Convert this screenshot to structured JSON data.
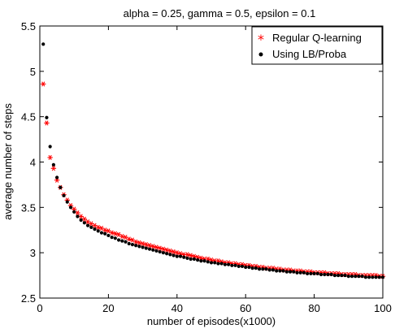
{
  "chart_data": {
    "type": "scatter",
    "title": "alpha = 0.25, gamma = 0.5, epsilon = 0.1",
    "xlabel": "number of episodes(x1000)",
    "ylabel": "average number of steps",
    "xlim": [
      0,
      100
    ],
    "ylim": [
      2.5,
      5.5
    ],
    "x_ticks": [
      0,
      20,
      40,
      60,
      80,
      100
    ],
    "y_ticks": [
      2.5,
      3,
      3.5,
      4,
      4.5,
      5,
      5.5
    ],
    "x_tick_labels": [
      "0",
      "20",
      "40",
      "60",
      "80",
      "100"
    ],
    "y_tick_labels": [
      "2.5",
      "3",
      "3.5",
      "4",
      "4.5",
      "5",
      "5.5"
    ],
    "grid": false,
    "legend_position": "top-right",
    "series": [
      {
        "name": "Regular Q-learning",
        "marker": "asterisk",
        "color": "#ff0000",
        "x": [
          1,
          2,
          3,
          4,
          5,
          6,
          7,
          8,
          9,
          10,
          11,
          12,
          13,
          14,
          15,
          16,
          17,
          18,
          19,
          20,
          21,
          22,
          23,
          24,
          25,
          26,
          27,
          28,
          29,
          30,
          31,
          32,
          33,
          34,
          35,
          36,
          37,
          38,
          39,
          40,
          41,
          42,
          43,
          44,
          45,
          46,
          47,
          48,
          49,
          50,
          51,
          52,
          53,
          54,
          55,
          56,
          57,
          58,
          59,
          60,
          61,
          62,
          63,
          64,
          65,
          66,
          67,
          68,
          69,
          70,
          71,
          72,
          73,
          74,
          75,
          76,
          77,
          78,
          79,
          80,
          81,
          82,
          83,
          84,
          85,
          86,
          87,
          88,
          89,
          90,
          91,
          92,
          93,
          94,
          95,
          96,
          97,
          98,
          99,
          100
        ],
        "y": [
          4.86,
          4.43,
          4.05,
          3.93,
          3.8,
          3.72,
          3.64,
          3.58,
          3.52,
          3.48,
          3.44,
          3.4,
          3.37,
          3.34,
          3.32,
          3.3,
          3.28,
          3.27,
          3.25,
          3.24,
          3.22,
          3.21,
          3.2,
          3.18,
          3.17,
          3.15,
          3.14,
          3.12,
          3.11,
          3.1,
          3.09,
          3.08,
          3.07,
          3.06,
          3.05,
          3.04,
          3.03,
          3.02,
          3.01,
          3.0,
          2.99,
          2.98,
          2.98,
          2.97,
          2.96,
          2.95,
          2.94,
          2.93,
          2.93,
          2.92,
          2.91,
          2.91,
          2.9,
          2.89,
          2.89,
          2.88,
          2.88,
          2.87,
          2.87,
          2.86,
          2.86,
          2.85,
          2.85,
          2.84,
          2.84,
          2.83,
          2.83,
          2.83,
          2.82,
          2.82,
          2.81,
          2.81,
          2.81,
          2.8,
          2.8,
          2.8,
          2.79,
          2.79,
          2.79,
          2.78,
          2.78,
          2.78,
          2.78,
          2.77,
          2.77,
          2.77,
          2.77,
          2.76,
          2.76,
          2.76,
          2.76,
          2.76,
          2.75,
          2.75,
          2.75,
          2.75,
          2.75,
          2.75,
          2.74,
          2.74
        ]
      },
      {
        "name": "Using LB/Proba",
        "marker": "dot",
        "color": "#000000",
        "x": [
          1,
          2,
          3,
          4,
          5,
          6,
          7,
          8,
          9,
          10,
          11,
          12,
          13,
          14,
          15,
          16,
          17,
          18,
          19,
          20,
          21,
          22,
          23,
          24,
          25,
          26,
          27,
          28,
          29,
          30,
          31,
          32,
          33,
          34,
          35,
          36,
          37,
          38,
          39,
          40,
          41,
          42,
          43,
          44,
          45,
          46,
          47,
          48,
          49,
          50,
          51,
          52,
          53,
          54,
          55,
          56,
          57,
          58,
          59,
          60,
          61,
          62,
          63,
          64,
          65,
          66,
          67,
          68,
          69,
          70,
          71,
          72,
          73,
          74,
          75,
          76,
          77,
          78,
          79,
          80,
          81,
          82,
          83,
          84,
          85,
          86,
          87,
          88,
          89,
          90,
          91,
          92,
          93,
          94,
          95,
          96,
          97,
          98,
          99,
          100
        ],
        "y": [
          5.3,
          4.49,
          4.17,
          3.97,
          3.83,
          3.72,
          3.63,
          3.56,
          3.5,
          3.45,
          3.4,
          3.36,
          3.33,
          3.3,
          3.28,
          3.26,
          3.24,
          3.22,
          3.21,
          3.19,
          3.17,
          3.16,
          3.14,
          3.13,
          3.12,
          3.1,
          3.09,
          3.08,
          3.07,
          3.06,
          3.05,
          3.04,
          3.03,
          3.02,
          3.01,
          3.0,
          2.99,
          2.98,
          2.97,
          2.96,
          2.96,
          2.95,
          2.94,
          2.93,
          2.93,
          2.92,
          2.91,
          2.91,
          2.9,
          2.89,
          2.89,
          2.88,
          2.88,
          2.87,
          2.87,
          2.86,
          2.86,
          2.85,
          2.85,
          2.84,
          2.84,
          2.83,
          2.83,
          2.82,
          2.82,
          2.82,
          2.81,
          2.81,
          2.8,
          2.8,
          2.8,
          2.79,
          2.79,
          2.79,
          2.78,
          2.78,
          2.78,
          2.77,
          2.77,
          2.77,
          2.77,
          2.76,
          2.76,
          2.76,
          2.76,
          2.75,
          2.75,
          2.75,
          2.75,
          2.74,
          2.74,
          2.74,
          2.74,
          2.74,
          2.73,
          2.73,
          2.73,
          2.73,
          2.73,
          2.73
        ]
      }
    ]
  }
}
